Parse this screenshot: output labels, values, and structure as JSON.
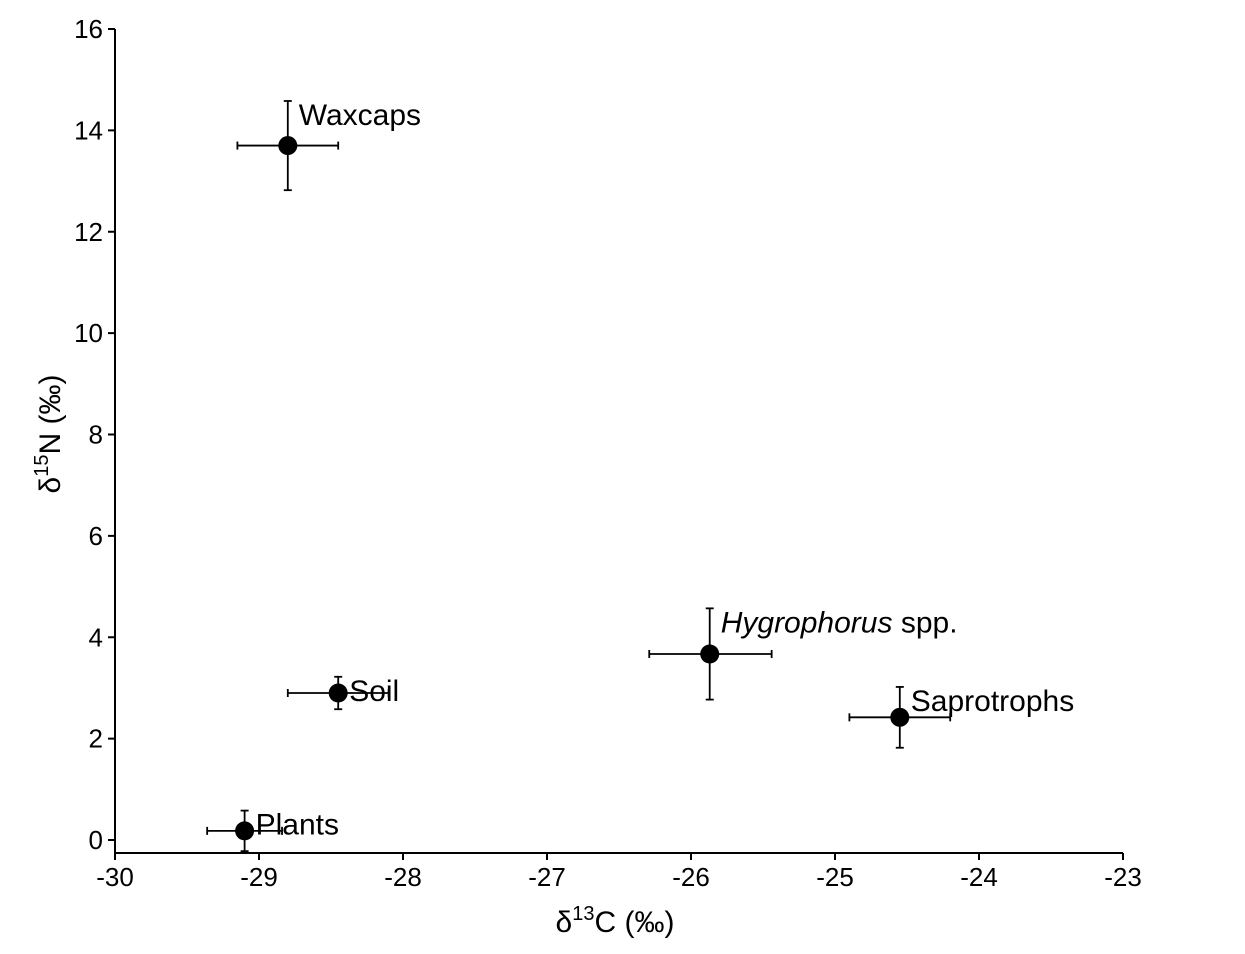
{
  "chart_data": {
    "type": "scatter",
    "title": "",
    "xlabel": {
      "prefix": "δ",
      "sup": "13",
      "suffix": "C (‰)"
    },
    "ylabel": {
      "prefix": "δ",
      "sup": "15",
      "suffix": "N (‰)"
    },
    "xlim": [
      -30,
      -23
    ],
    "ylim": [
      -0.25,
      16
    ],
    "xticks": [
      -30,
      -29,
      -28,
      -27,
      -26,
      -25,
      -24,
      -23
    ],
    "yticks": [
      0,
      2,
      4,
      6,
      8,
      10,
      12,
      14,
      16
    ],
    "grid": false,
    "legend": "none",
    "marker_color": "#000000",
    "points": [
      {
        "label": "Waxcaps",
        "italic": "",
        "rest": "Waxcaps",
        "x": -28.8,
        "y": 13.7,
        "xerr": [
          0.35,
          0.35
        ],
        "yerr": [
          0.88,
          0.88
        ],
        "label_anchor": "right-up"
      },
      {
        "label": "Soil",
        "italic": "",
        "rest": "Soil",
        "x": -28.45,
        "y": 2.9,
        "xerr": [
          0.35,
          0.35
        ],
        "yerr": [
          0.32,
          0.32
        ],
        "label_anchor": "right-up"
      },
      {
        "label": "Plants",
        "italic": "",
        "rest": "Plants",
        "x": -29.1,
        "y": 0.18,
        "xerr": [
          0.26,
          0.26
        ],
        "yerr": [
          0.4,
          0.4
        ],
        "label_anchor": "right-up"
      },
      {
        "label": "Hygrophorus spp.",
        "italic": "Hygrophorus",
        "rest": " spp.",
        "x": -25.87,
        "y": 3.67,
        "xerr": [
          0.42,
          0.43
        ],
        "yerr": [
          0.9,
          0.9
        ],
        "label_anchor": "right-up"
      },
      {
        "label": "Saprotrophs",
        "italic": "",
        "rest": "Saprotrophs",
        "x": -24.55,
        "y": 2.42,
        "xerr": [
          0.35,
          0.35
        ],
        "yerr": [
          0.6,
          0.6
        ],
        "label_anchor": "right-up"
      }
    ]
  }
}
